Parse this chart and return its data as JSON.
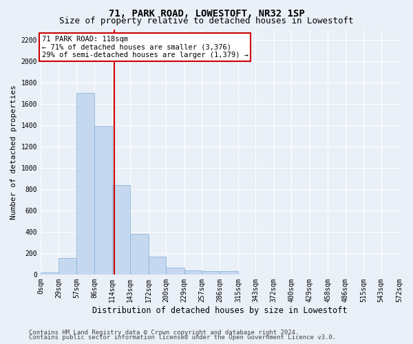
{
  "title": "71, PARK ROAD, LOWESTOFT, NR32 1SP",
  "subtitle": "Size of property relative to detached houses in Lowestoft",
  "xlabel": "Distribution of detached houses by size in Lowestoft",
  "ylabel": "Number of detached properties",
  "bar_edges": [
    0,
    29,
    57,
    86,
    114,
    143,
    172,
    200,
    229,
    257,
    286,
    315,
    343,
    372,
    400,
    429,
    458,
    486,
    515,
    543,
    572
  ],
  "bar_heights": [
    20,
    155,
    1700,
    1390,
    840,
    380,
    165,
    65,
    40,
    30,
    30,
    0,
    0,
    0,
    0,
    0,
    0,
    0,
    0,
    0
  ],
  "bar_color": "#c5d8f0",
  "bar_edge_color": "#7fafd4",
  "property_size": 118,
  "annotation_title": "71 PARK ROAD: 118sqm",
  "annotation_line1": "← 71% of detached houses are smaller (3,376)",
  "annotation_line2": "29% of semi-detached houses are larger (1,379) →",
  "annotation_box_color": "#ffffff",
  "annotation_box_edge_color": "#cc0000",
  "vline_color": "#cc0000",
  "ylim": [
    0,
    2300
  ],
  "yticks": [
    0,
    200,
    400,
    600,
    800,
    1000,
    1200,
    1400,
    1600,
    1800,
    2000,
    2200
  ],
  "footer_line1": "Contains HM Land Registry data © Crown copyright and database right 2024.",
  "footer_line2": "Contains public sector information licensed under the Open Government Licence v3.0.",
  "bg_color": "#eaf0f8",
  "plot_bg_color": "#eaf0f8",
  "grid_color": "#ffffff",
  "title_fontsize": 10,
  "subtitle_fontsize": 9,
  "axis_label_fontsize": 8,
  "tick_fontsize": 7,
  "footer_fontsize": 6.5,
  "annotation_fontsize": 7.5
}
